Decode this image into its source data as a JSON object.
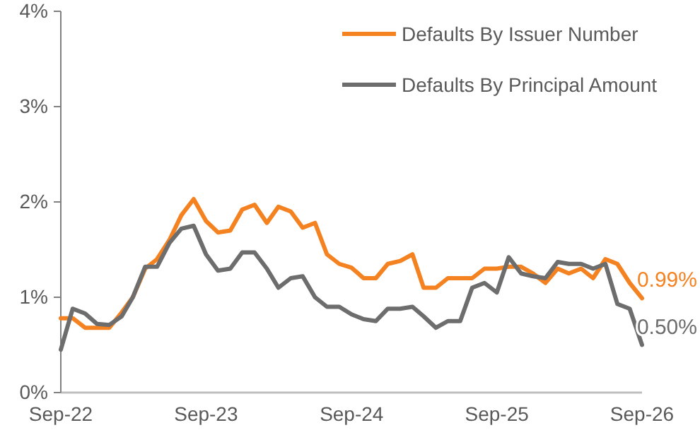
{
  "chart_data": {
    "type": "line",
    "x": [
      "2022-09",
      "2022-10",
      "2022-11",
      "2022-12",
      "2023-01",
      "2023-02",
      "2023-03",
      "2023-04",
      "2023-05",
      "2023-06",
      "2023-07",
      "2023-08",
      "2023-09",
      "2023-10",
      "2023-11",
      "2023-12",
      "2024-01",
      "2024-02",
      "2024-03",
      "2024-04",
      "2024-05",
      "2024-06",
      "2024-07",
      "2024-08",
      "2024-09",
      "2024-10",
      "2024-11",
      "2024-12",
      "2025-01",
      "2025-02",
      "2025-03",
      "2025-04",
      "2025-05",
      "2025-06",
      "2025-07",
      "2025-08",
      "2025-09",
      "2025-10",
      "2025-11",
      "2025-12",
      "2026-01",
      "2026-02",
      "2026-03",
      "2026-04",
      "2026-05",
      "2026-06",
      "2026-07",
      "2026-08",
      "2026-09"
    ],
    "series": [
      {
        "name": "Defaults By Issuer Number",
        "color": "#f58220",
        "values": [
          0.78,
          0.78,
          0.68,
          0.68,
          0.68,
          0.84,
          1.0,
          1.3,
          1.4,
          1.6,
          1.86,
          2.03,
          1.8,
          1.68,
          1.7,
          1.92,
          1.97,
          1.78,
          1.95,
          1.9,
          1.73,
          1.78,
          1.45,
          1.35,
          1.31,
          1.2,
          1.2,
          1.35,
          1.38,
          1.45,
          1.1,
          1.1,
          1.2,
          1.2,
          1.2,
          1.3,
          1.3,
          1.32,
          1.32,
          1.25,
          1.15,
          1.3,
          1.25,
          1.3,
          1.2,
          1.4,
          1.35,
          1.15,
          0.99
        ],
        "value_labels": [
          null,
          null,
          null,
          null,
          null,
          null,
          null,
          null,
          null,
          null,
          null,
          null,
          null,
          null,
          null,
          null,
          null,
          null,
          null,
          null,
          null,
          null,
          null,
          null,
          null,
          null,
          null,
          null,
          null,
          null,
          null,
          null,
          null,
          null,
          null,
          null,
          null,
          null,
          null,
          null,
          null,
          null,
          null,
          null,
          null,
          null,
          null,
          null,
          "0.99%"
        ]
      },
      {
        "name": "Defaults By Principal Amount",
        "color": "#6d6d6d",
        "values": [
          0.45,
          0.88,
          0.83,
          0.72,
          0.71,
          0.8,
          1.0,
          1.32,
          1.32,
          1.57,
          1.72,
          1.75,
          1.45,
          1.28,
          1.3,
          1.47,
          1.47,
          1.3,
          1.1,
          1.2,
          1.22,
          1.0,
          0.9,
          0.9,
          0.82,
          0.77,
          0.75,
          0.88,
          0.88,
          0.9,
          0.8,
          0.68,
          0.75,
          0.75,
          1.1,
          1.15,
          1.05,
          1.42,
          1.25,
          1.22,
          1.2,
          1.37,
          1.35,
          1.35,
          1.3,
          1.35,
          0.93,
          0.88,
          0.5
        ],
        "value_labels": [
          null,
          null,
          null,
          null,
          null,
          null,
          null,
          null,
          null,
          null,
          null,
          null,
          null,
          null,
          null,
          null,
          null,
          null,
          null,
          null,
          null,
          null,
          null,
          null,
          null,
          null,
          null,
          null,
          null,
          null,
          null,
          null,
          null,
          null,
          null,
          null,
          null,
          null,
          null,
          null,
          null,
          null,
          null,
          null,
          null,
          null,
          null,
          null,
          "0.50%"
        ]
      }
    ],
    "xlim": [
      "2022-09",
      "2026-09"
    ],
    "xticks": [
      {
        "value": "2022-09",
        "label": "Sep-22"
      },
      {
        "value": "2023-09",
        "label": "Sep-23"
      },
      {
        "value": "2024-09",
        "label": "Sep-24"
      },
      {
        "value": "2025-09",
        "label": "Sep-25"
      },
      {
        "value": "2026-09",
        "label": "Sep-26"
      }
    ],
    "ylim": [
      0,
      4
    ],
    "yticks": [
      {
        "value": 0,
        "label": "0%"
      },
      {
        "value": 1,
        "label": "1%"
      },
      {
        "value": 2,
        "label": "2%"
      },
      {
        "value": 3,
        "label": "3%"
      },
      {
        "value": 4,
        "label": "4%"
      }
    ],
    "legend": "top right",
    "grid": false,
    "line_style": "solid",
    "marker": "none"
  }
}
